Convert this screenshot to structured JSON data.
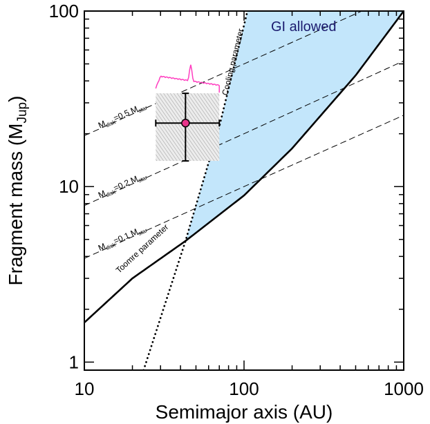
{
  "chart_data": {
    "type": "line",
    "xlabel": "Semimajor axis (AU)",
    "ylabel_main": "Fragment mass (M",
    "ylabel_sub": "Jup",
    "ylabel_close": ")",
    "x_scale": "log",
    "y_scale": "log",
    "xlim": [
      10,
      1000
    ],
    "ylim": [
      0.9,
      100
    ],
    "x_ticks": [
      {
        "value": 10,
        "label": "10"
      },
      {
        "value": 100,
        "label": "100"
      },
      {
        "value": 1000,
        "label": "1000"
      }
    ],
    "y_ticks": [
      {
        "value": 1,
        "label": "1"
      },
      {
        "value": 10,
        "label": "10"
      },
      {
        "value": 100,
        "label": "100"
      }
    ],
    "region_label": "GI allowed",
    "region_color": "#c3e6fb",
    "series": [
      {
        "key": "toomre",
        "label": "Toomre parameter",
        "style": "solid",
        "points": [
          [
            10,
            1.68
          ],
          [
            20,
            3.0
          ],
          [
            43,
            4.9
          ],
          [
            100,
            8.9
          ],
          [
            200,
            16.5
          ],
          [
            500,
            43
          ],
          [
            1000,
            100
          ]
        ]
      },
      {
        "key": "cooling",
        "label": "Cooling parameter",
        "style": "dotted",
        "points": [
          [
            23.5,
            0.9
          ],
          [
            43,
            4.9
          ],
          [
            70,
            22
          ],
          [
            90,
            56
          ],
          [
            105,
            100
          ]
        ]
      },
      {
        "key": "m05",
        "style": "dashed",
        "points": [
          [
            10,
            19.5
          ],
          [
            100,
            50
          ],
          [
            1000,
            128
          ]
        ]
      },
      {
        "key": "m02",
        "style": "dashed",
        "points": [
          [
            10,
            7.8
          ],
          [
            100,
            20
          ],
          [
            1000,
            52
          ]
        ]
      },
      {
        "key": "m01",
        "style": "dashed",
        "points": [
          [
            10,
            3.9
          ],
          [
            100,
            10
          ],
          [
            1000,
            25.5
          ]
        ]
      }
    ],
    "disk_labels": [
      {
        "key": "m05",
        "m": "M",
        "sub1": "disk",
        "eq": "=0.5 M",
        "sub2": "star",
        "at": [
          12.5,
          21.5
        ]
      },
      {
        "key": "m02",
        "m": "M",
        "sub1": "disk",
        "eq": "=0.2 M",
        "sub2": "star",
        "at": [
          12.5,
          8.6
        ]
      },
      {
        "key": "m01",
        "m": "M",
        "sub1": "disk",
        "eq": "=0.1 M",
        "sub2": "star",
        "at": [
          12.5,
          4.3
        ]
      }
    ],
    "measurement": {
      "x": 43,
      "y": 23,
      "x_err": [
        28,
        70
      ],
      "y_err": [
        14,
        34
      ],
      "box": {
        "x": [
          28,
          70
        ],
        "y": [
          14,
          34
        ]
      },
      "marker_color": "#e8338a"
    },
    "spectrum_color": "#ff3dbf"
  }
}
